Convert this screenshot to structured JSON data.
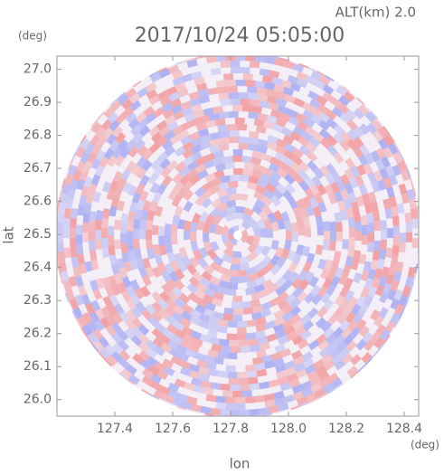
{
  "chart_data": {
    "type": "radar-field",
    "title": "2017/10/24 05:05:00",
    "subtitle": "ALT(km) 2.0",
    "x_label": "lon",
    "y_label": "lat",
    "x_unit": "(deg)",
    "y_unit": "(deg)",
    "xlim": [
      127.2,
      128.45
    ],
    "ylim": [
      25.95,
      27.04
    ],
    "xticks": [
      127.4,
      127.6,
      127.8,
      {
        "value": 128,
        "label": "128.0"
      },
      128.2,
      128.4
    ],
    "yticks": [
      {
        "value": 26,
        "label": "26.0"
      },
      26.1,
      26.2,
      26.3,
      26.4,
      26.5,
      26.6,
      26.7,
      26.8,
      26.9,
      {
        "value": 27,
        "label": "27.0"
      }
    ]
  }
}
